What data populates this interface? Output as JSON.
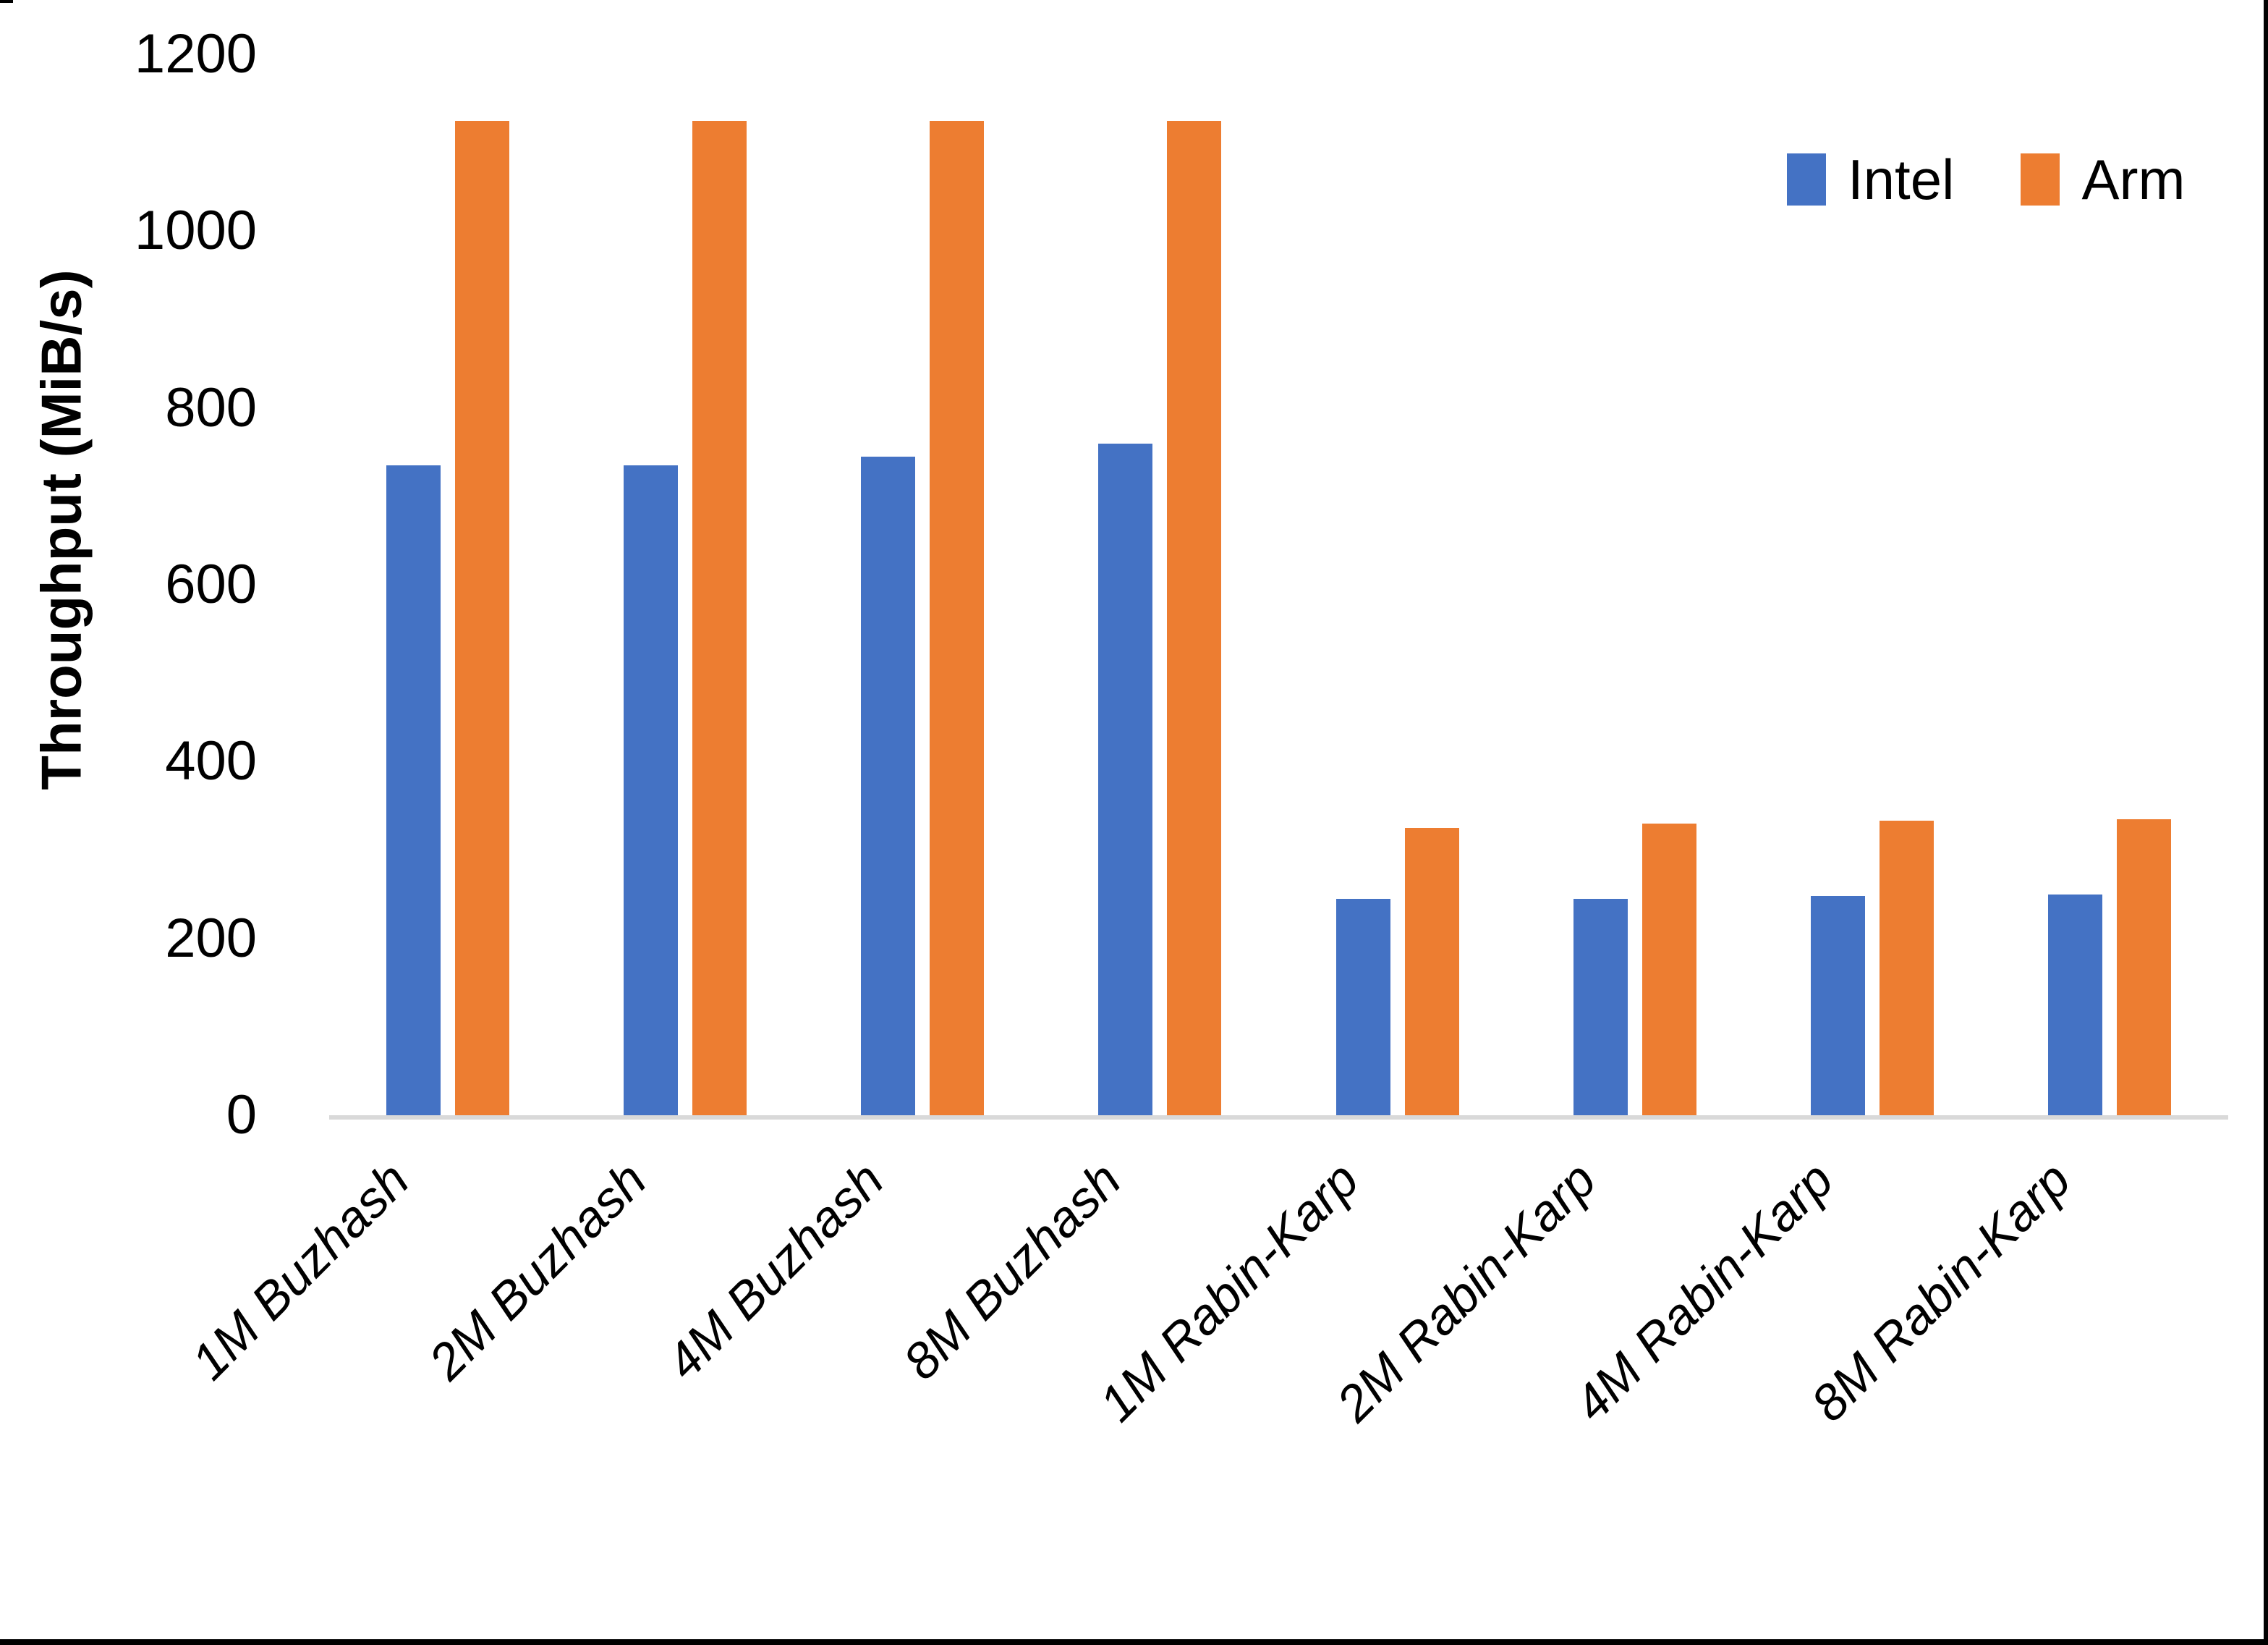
{
  "chart_data": {
    "type": "bar",
    "title": "",
    "ylabel": "Throughput (MiB/s)",
    "xlabel": "",
    "ylim": [
      0,
      1200
    ],
    "yticks": [
      0,
      200,
      400,
      600,
      800,
      1000,
      1200
    ],
    "grid": false,
    "legend_position": "top-right",
    "categories": [
      "1M Buzhash",
      "2M Buzhash",
      "4M Buzhash",
      "8M Buzhash",
      "1M Rabin-Karp",
      "2M Rabin-Karp",
      "4M Rabin-Karp",
      "8M Rabin-Karp"
    ],
    "series": [
      {
        "name": "Intel",
        "color": "#4472C4",
        "values": [
          735,
          735,
          745,
          760,
          245,
          245,
          248,
          250
        ]
      },
      {
        "name": "Arm",
        "color": "#ED7D31",
        "values": [
          1125,
          1125,
          1125,
          1125,
          325,
          330,
          333,
          335
        ]
      }
    ]
  },
  "legend": {
    "items": [
      {
        "label": "Intel",
        "color": "#4472C4"
      },
      {
        "label": "Arm",
        "color": "#ED7D31"
      }
    ]
  },
  "axis": {
    "line_color": "#d9d9d9",
    "text_color": "#000000"
  },
  "page": {
    "background": "#ffffff",
    "edge_color": "#000000"
  }
}
